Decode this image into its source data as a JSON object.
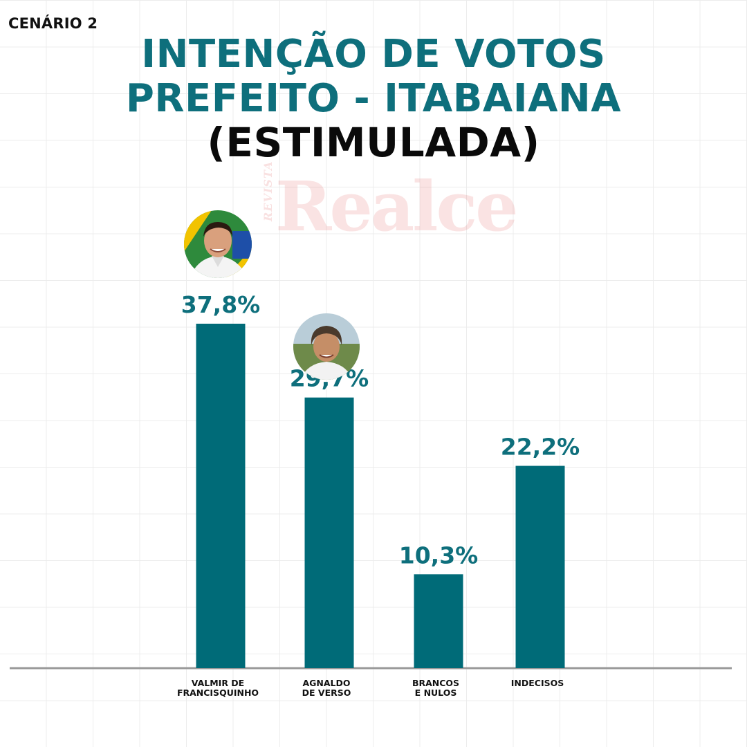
{
  "header": {
    "scenario": "CENÁRIO 2",
    "title_line1": "INTENÇÃO DE VOTOS",
    "title_line2": "PREFEITO - ITABAIANA",
    "title_line3": "(ESTIMULADA)"
  },
  "watermark": {
    "small": "REVISTA",
    "brand": "Realce"
  },
  "colors": {
    "accent": "#0e6f7c",
    "bar": "#006b78",
    "title_dark": "#0a0a0a",
    "axis": "#9a9a9a"
  },
  "chart_data": {
    "type": "bar",
    "categories": [
      "VALMIR DE\nFRANCISQUINHO",
      "AGNALDO\nDE VERSO",
      "BRANCOS\nE NULOS",
      "INDECISOS"
    ],
    "values": [
      37.8,
      29.7,
      10.3,
      22.2
    ],
    "value_labels": [
      "37,8%",
      "29,7%",
      "10,3%",
      "22,2%"
    ],
    "title": "INTENÇÃO DE VOTOS PREFEITO - ITABAIANA (ESTIMULADA)",
    "ylim": [
      0,
      37.8
    ],
    "grid": true,
    "legend": "none"
  },
  "candidate_photos": [
    "candidate-photo-valmir",
    "candidate-photo-agnaldo"
  ]
}
